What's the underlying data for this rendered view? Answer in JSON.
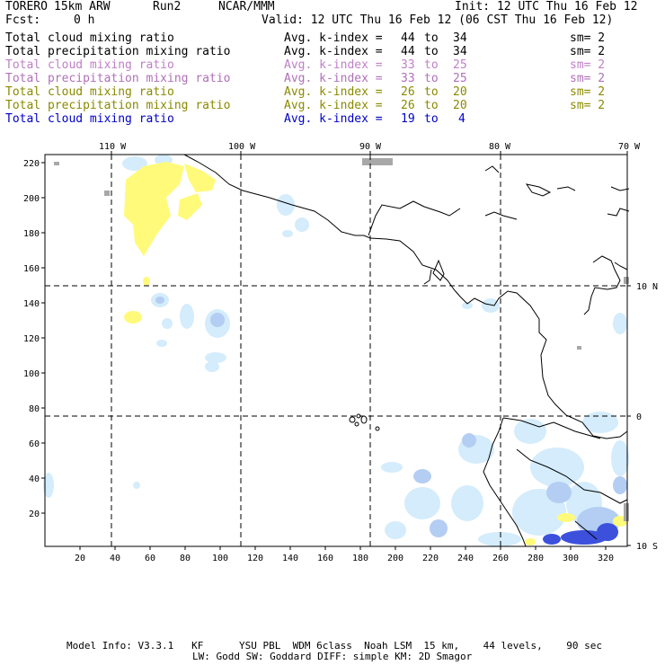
{
  "header": {
    "model": "TORERO",
    "resolution": "15km ARW",
    "run": "Run2",
    "org": "NCAR/MMM",
    "init": "Init: 12 UTC Thu 16 Feb 12",
    "fcst_label": "Fcst:",
    "fcst_value": "0 h",
    "valid": "Valid: 12 UTC Thu 16 Feb 12 (06 CST Thu 16 Feb 12)"
  },
  "legend": [
    {
      "name": "Total cloud mixing ratio",
      "kindex_label": "Avg. k-index =",
      "k1": "44",
      "to": "to",
      "k2": "34",
      "sm": "sm= 2",
      "color": "#000000"
    },
    {
      "name": "Total precipitation mixing ratio",
      "kindex_label": "Avg. k-index =",
      "k1": "44",
      "to": "to",
      "k2": "34",
      "sm": "sm= 2",
      "color": "#000000"
    },
    {
      "name": "Total cloud mixing ratio",
      "kindex_label": "Avg. k-index =",
      "k1": "33",
      "to": "to",
      "k2": "25",
      "sm": "sm= 2",
      "color": "#c080c8"
    },
    {
      "name": "Total precipitation mixing ratio",
      "kindex_label": "Avg. k-index =",
      "k1": "33",
      "to": "to",
      "k2": "25",
      "sm": "sm= 2",
      "color": "#b070b8"
    },
    {
      "name": "Total cloud mixing ratio",
      "kindex_label": "Avg. k-index =",
      "k1": "26",
      "to": "to",
      "k2": "20",
      "sm": "sm= 2",
      "color": "#8a8a00"
    },
    {
      "name": "Total precipitation mixing ratio",
      "kindex_label": "Avg. k-index =",
      "k1": "26",
      "to": "to",
      "k2": "20",
      "sm": "sm= 2",
      "color": "#8a8a00"
    },
    {
      "name": "Total cloud mixing ratio",
      "kindex_label": "Avg. k-index =",
      "k1": "19",
      "to": "to",
      "k2": "4",
      "sm": "",
      "color": "#0000c8"
    }
  ],
  "map": {
    "lon_labels": [
      "110 W",
      "100 W",
      "90 W",
      "80 W",
      "70 W"
    ],
    "lat_labels": [
      "10 N",
      "0",
      "10 S"
    ],
    "y_ticks": [
      "220",
      "200",
      "180",
      "160",
      "140",
      "120",
      "100",
      "80",
      "60",
      "40",
      "20"
    ],
    "x_ticks": [
      "20",
      "40",
      "60",
      "80",
      "100",
      "120",
      "140",
      "160",
      "180",
      "200",
      "220",
      "240",
      "260",
      "280",
      "300",
      "320"
    ],
    "colors": {
      "light_blue": "#d4ecfb",
      "mid_blue": "#b4cdf2",
      "dark_blue": "#3c50dc",
      "yellow": "#fffa7a",
      "gray": "#a8a8a8"
    }
  },
  "footer": {
    "line1": "Model Info: V3.3.1   KF      YSU PBL  WDM 6class  Noah LSM  15 km,    44 levels,    90 sec",
    "line2": "LW: Godd SW: Goddard DIFF: simple KM: 2D Smagor"
  }
}
